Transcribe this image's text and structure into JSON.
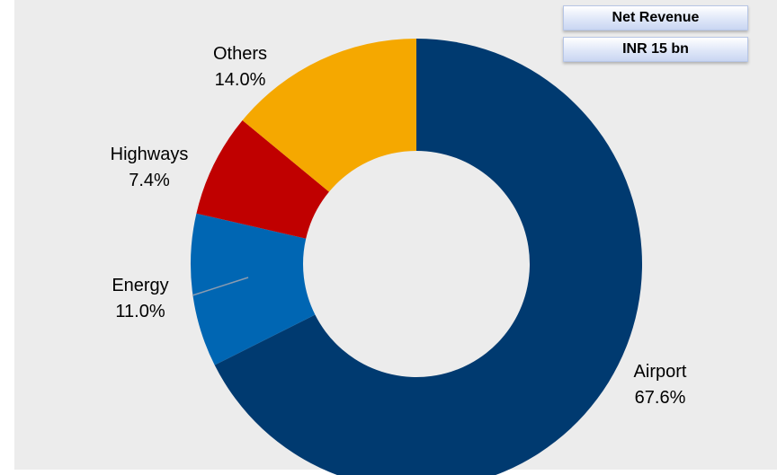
{
  "badge": {
    "title": "Net Revenue",
    "value": "INR 15 bn"
  },
  "chart_data": {
    "type": "pie",
    "subtype": "donut",
    "title": "",
    "start_angle_deg": 0,
    "direction": "clockwise",
    "slices": [
      {
        "name": "Airport",
        "value": 67.6,
        "label": "67.6%",
        "color": "#003a70"
      },
      {
        "name": "Energy",
        "value": 11.0,
        "label": "11.0%",
        "color": "#0066b3"
      },
      {
        "name": "Highways",
        "value": 7.4,
        "label": "7.4%",
        "color": "#c00000"
      },
      {
        "name": "Others",
        "value": 14.0,
        "label": "14.0%",
        "color": "#f5a800"
      }
    ],
    "legend": "none",
    "grid": false
  }
}
